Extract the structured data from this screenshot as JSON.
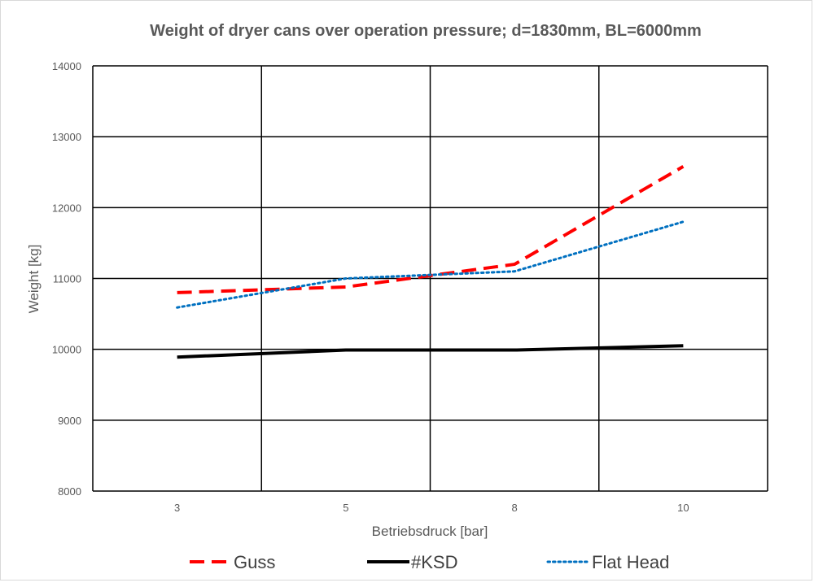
{
  "chart_data": {
    "type": "line",
    "title": "Weight of dryer cans over operation pressure; d=1830mm, BL=6000mm",
    "xlabel": "Betriebsdruck [bar]",
    "ylabel": "Weight [kg]",
    "categories": [
      "3",
      "5",
      "8",
      "10"
    ],
    "ylim": [
      8000,
      14000
    ],
    "yticks": [
      "8000",
      "9000",
      "10000",
      "11000",
      "12000",
      "13000",
      "14000"
    ],
    "grid": true,
    "legend_position": "bottom",
    "series": [
      {
        "name": "Guss",
        "color": "#ff0000",
        "style": "dashed",
        "values": [
          10800,
          10880,
          11200,
          12580
        ]
      },
      {
        "name": "#KSD",
        "color": "#000000",
        "style": "solid",
        "values": [
          9890,
          9990,
          9990,
          10050
        ]
      },
      {
        "name": "Flat Head",
        "color": "#0070c0",
        "style": "dotted",
        "values": [
          10590,
          11000,
          11100,
          11800
        ]
      }
    ]
  }
}
